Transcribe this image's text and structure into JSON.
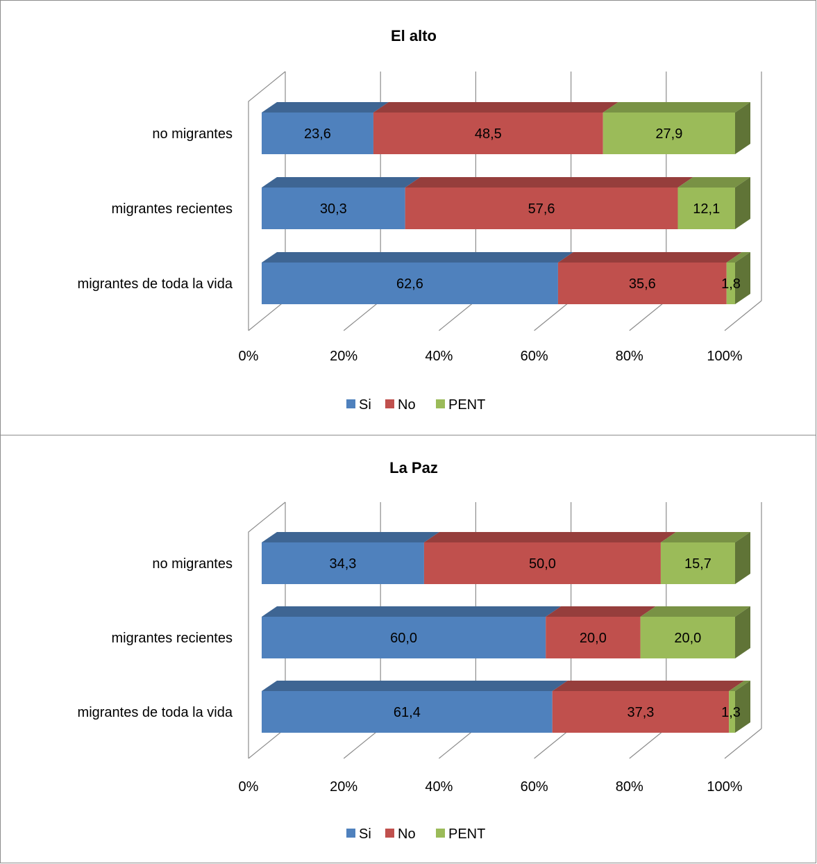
{
  "chart_data": [
    {
      "type": "bar",
      "orientation": "horizontal",
      "stacked": "percent",
      "three_d": true,
      "title": "El alto",
      "categories": [
        "migrantes de toda la vida",
        "migrantes  recientes",
        "no migrantes"
      ],
      "series": [
        {
          "name": "Si",
          "color": "#4f81bd",
          "values": [
            62.6,
            30.3,
            23.6
          ],
          "labels": [
            "62,6",
            "30,3",
            "23,6"
          ]
        },
        {
          "name": "No",
          "color": "#c0504d",
          "values": [
            35.6,
            57.6,
            48.5
          ],
          "labels": [
            "35,6",
            "57,6",
            "48,5"
          ]
        },
        {
          "name": "PENT",
          "color": "#9bbb59",
          "values": [
            1.8,
            12.1,
            27.9
          ],
          "labels": [
            "1,8",
            "12,1",
            "27,9"
          ]
        }
      ],
      "xlim": [
        0,
        100
      ],
      "ticks": [
        "0%",
        "20%",
        "40%",
        "60%",
        "80%",
        "100%"
      ],
      "grid": true,
      "legend": "bottom"
    },
    {
      "type": "bar",
      "orientation": "horizontal",
      "stacked": "percent",
      "three_d": true,
      "title": "La Paz",
      "categories": [
        "migrantes de toda la vida",
        "migrantes  recientes",
        "no migrantes"
      ],
      "series": [
        {
          "name": "Si",
          "color": "#4f81bd",
          "values": [
            61.4,
            60.0,
            34.3
          ],
          "labels": [
            "61,4",
            "60,0",
            "34,3"
          ]
        },
        {
          "name": "No",
          "color": "#c0504d",
          "values": [
            37.3,
            20.0,
            50.0
          ],
          "labels": [
            "37,3",
            "20,0",
            "50,0"
          ]
        },
        {
          "name": "PENT",
          "color": "#9bbb59",
          "values": [
            1.3,
            20.0,
            15.7
          ],
          "labels": [
            "1,3",
            "20,0",
            "15,7"
          ]
        }
      ],
      "xlim": [
        0,
        100
      ],
      "ticks": [
        "0%",
        "20%",
        "40%",
        "60%",
        "80%",
        "100%"
      ],
      "grid": true,
      "legend": "bottom"
    }
  ]
}
